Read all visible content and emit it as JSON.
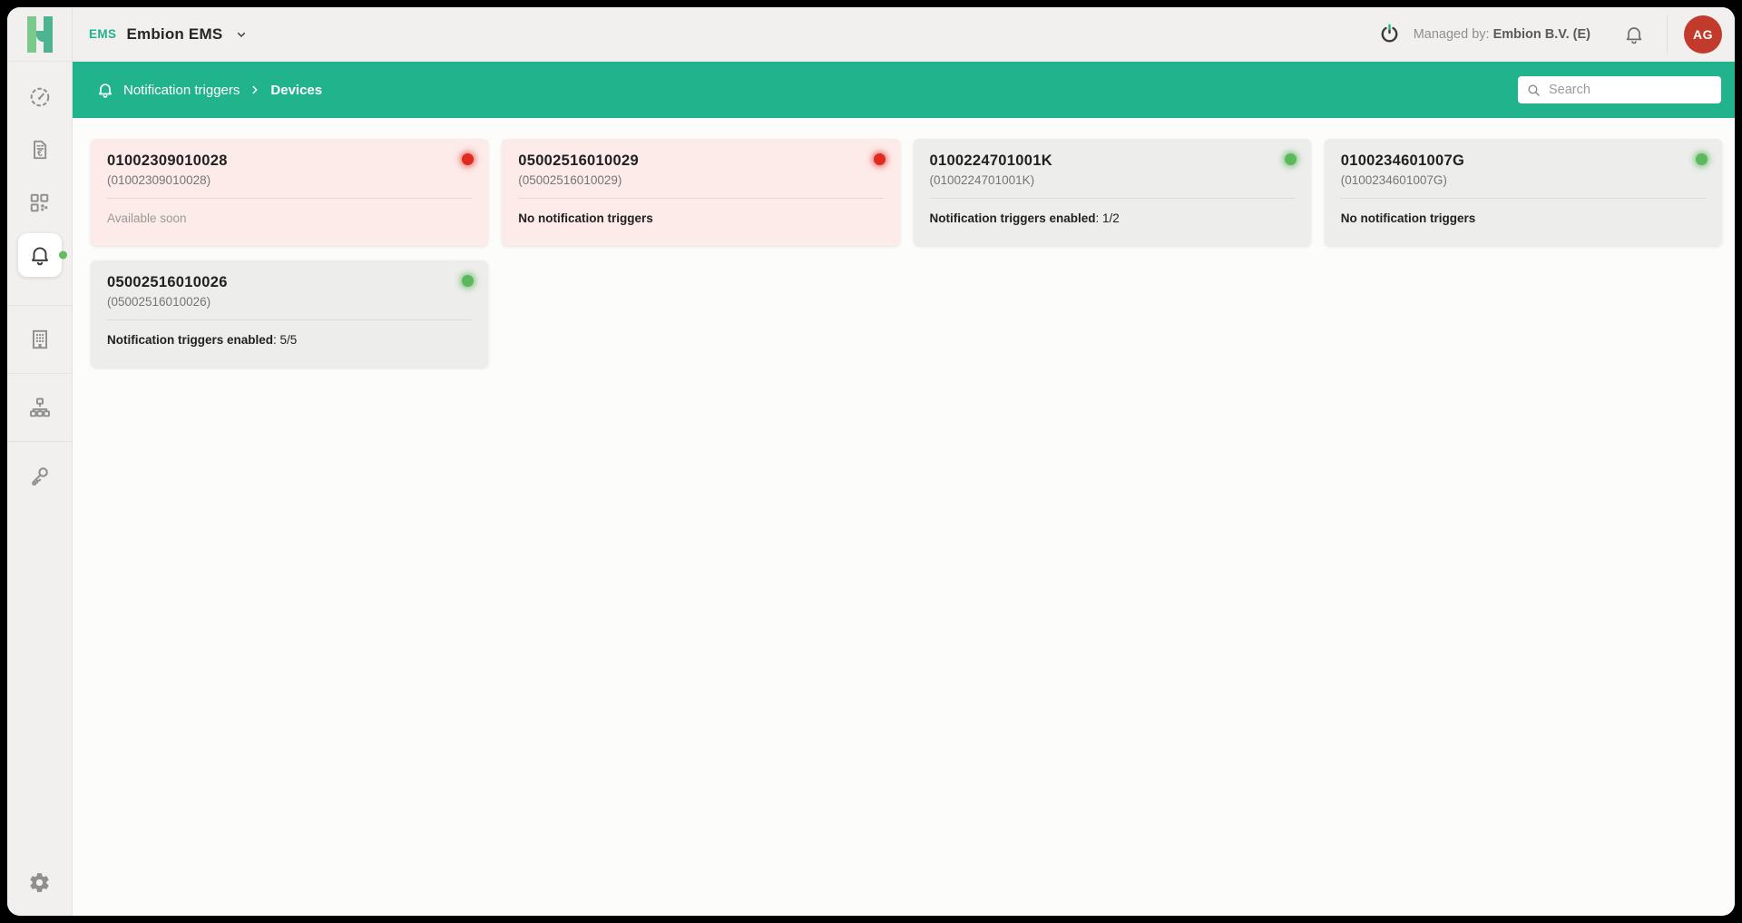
{
  "header": {
    "logo_letter": "H",
    "app_tag": "EMS",
    "app_title": "Embion EMS",
    "managed_by_label": "Managed by:",
    "managed_by_value": "Embion B.V. (E)",
    "avatar_initials": "AG"
  },
  "breadcrumb": {
    "section": "Notification triggers",
    "page": "Devices"
  },
  "search": {
    "placeholder": "Search"
  },
  "sidebar": {
    "items": [
      {
        "name": "dashboard",
        "icon": "gauge-icon",
        "active": false,
        "divider_before": false,
        "badge": false
      },
      {
        "name": "invoices",
        "icon": "invoice-euro-icon",
        "active": false,
        "divider_before": false,
        "badge": false
      },
      {
        "name": "modules",
        "icon": "apps-grid-icon",
        "active": false,
        "divider_before": false,
        "badge": false
      },
      {
        "name": "notifications",
        "icon": "bell-icon",
        "active": true,
        "divider_before": false,
        "badge": true
      },
      {
        "name": "buildings",
        "icon": "building-icon",
        "active": false,
        "divider_before": true,
        "badge": false
      },
      {
        "name": "topology",
        "icon": "sitemap-icon",
        "active": false,
        "divider_before": true,
        "badge": false
      },
      {
        "name": "access-keys",
        "icon": "key-icon",
        "active": false,
        "divider_before": true,
        "badge": false
      }
    ],
    "footer_item": {
      "name": "settings",
      "icon": "gear-icon"
    }
  },
  "cards": [
    {
      "title": "01002309010028",
      "subtitle": "(01002309010028)",
      "state": "alert",
      "status": {
        "text": "Available soon",
        "value": "",
        "muted": true
      }
    },
    {
      "title": "05002516010029",
      "subtitle": "(05002516010029)",
      "state": "alert",
      "status": {
        "text": "No notification triggers",
        "value": "",
        "muted": false
      }
    },
    {
      "title": "0100224701001K",
      "subtitle": "(0100224701001K)",
      "state": "ok",
      "status": {
        "text": "Notification triggers enabled",
        "value": ": 1/2",
        "muted": false
      }
    },
    {
      "title": "0100234601007G",
      "subtitle": "(0100234601007G)",
      "state": "ok",
      "status": {
        "text": "No notification triggers",
        "value": "",
        "muted": false
      }
    },
    {
      "title": "05002516010026",
      "subtitle": "(05002516010026)",
      "state": "ok",
      "status": {
        "text": "Notification triggers enabled",
        "value": ": 5/5",
        "muted": false
      }
    }
  ],
  "colors": {
    "brand_green": "#21b38b",
    "logo_light_green": "#7cc98c",
    "logo_dark_green": "#4db391",
    "status_ok_dot": "#5cb85c",
    "status_alert_dot": "#e02b20",
    "card_ok_bg": "#ededec",
    "card_alert_bg": "#fcebe9",
    "avatar_bg": "#c13a2c",
    "chrome_bg": "#f1f0ef"
  }
}
